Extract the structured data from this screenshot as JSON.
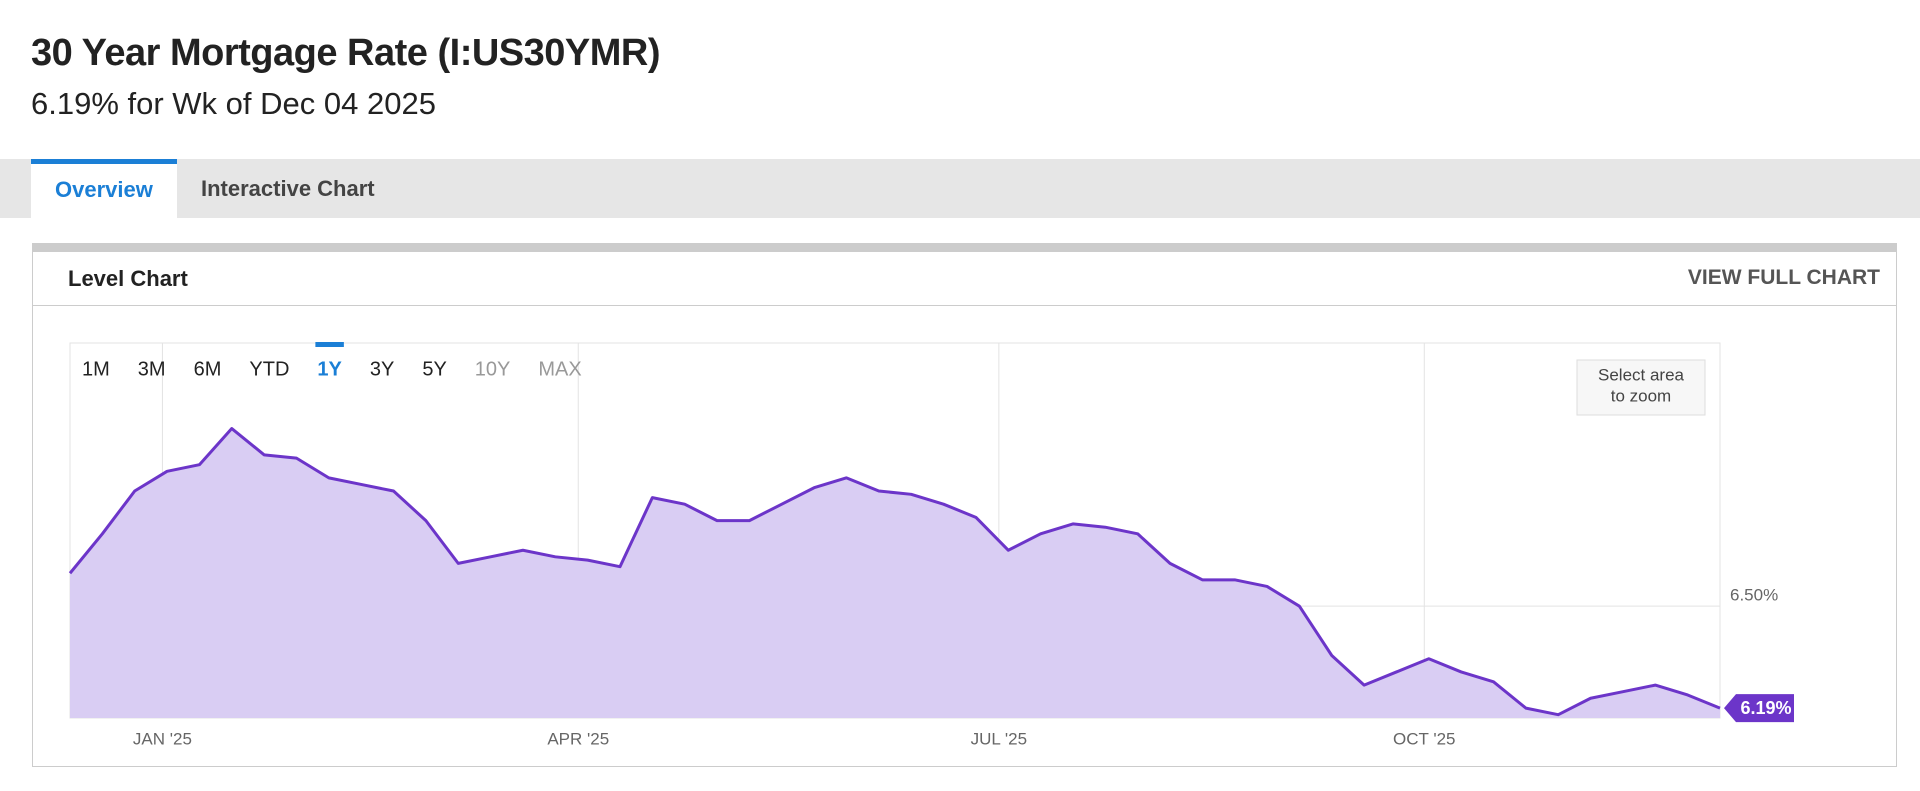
{
  "header": {
    "title": "30 Year Mortgage Rate (I:US30YMR)",
    "subtitle": "6.19% for Wk of Dec 04 2025"
  },
  "tabs": {
    "items": [
      "Overview",
      "Interactive Chart"
    ],
    "active": 0
  },
  "panel": {
    "title": "Level Chart",
    "link": "VIEW FULL CHART",
    "ranges": [
      "1M",
      "3M",
      "6M",
      "YTD",
      "1Y",
      "3Y",
      "5Y",
      "10Y",
      "MAX"
    ],
    "active_range": 4,
    "disabled_ranges": [
      7,
      8
    ],
    "zoom_hint": [
      "Select area",
      "to zoom"
    ]
  },
  "chart_data": {
    "type": "area",
    "color": "#6c35c9",
    "fill": "#d9cdf3",
    "categories": [
      null,
      null,
      null,
      null,
      null,
      null,
      null,
      null,
      null,
      null,
      null,
      null,
      null,
      null,
      null,
      null,
      null,
      null,
      null,
      null,
      null,
      null,
      null,
      null,
      null,
      null,
      null,
      null,
      null,
      null,
      null,
      null,
      null,
      null,
      null,
      null,
      null,
      null,
      null,
      null,
      null,
      null,
      null,
      null,
      null,
      null,
      null,
      null,
      null,
      null,
      null,
      null
    ],
    "values": [
      6.6,
      6.72,
      6.85,
      6.91,
      6.93,
      7.04,
      6.96,
      6.95,
      6.89,
      6.87,
      6.85,
      6.76,
      6.63,
      6.65,
      6.67,
      6.65,
      6.64,
      6.62,
      6.83,
      6.81,
      6.76,
      6.76,
      6.81,
      6.86,
      6.89,
      6.85,
      6.84,
      6.81,
      6.77,
      6.67,
      6.72,
      6.75,
      6.74,
      6.72,
      6.63,
      6.58,
      6.58,
      6.56,
      6.5,
      6.35,
      6.26,
      6.3,
      6.34,
      6.3,
      6.27,
      6.19,
      6.17,
      6.22,
      6.24,
      6.26,
      6.23,
      6.19
    ],
    "last_value_label": "6.19%",
    "xlim": [
      0,
      51
    ],
    "xticks": [
      {
        "value": 2.857,
        "label": "JAN '25"
      },
      {
        "value": 15.71,
        "label": "APR '25"
      },
      {
        "value": 28.71,
        "label": "JUL '25"
      },
      {
        "value": 41.86,
        "label": "OCT '25"
      }
    ],
    "ylim": [
      6.16,
      7.3
    ],
    "yticks": [
      {
        "value": 6.5,
        "label": "6.50%"
      }
    ],
    "grid": true
  }
}
